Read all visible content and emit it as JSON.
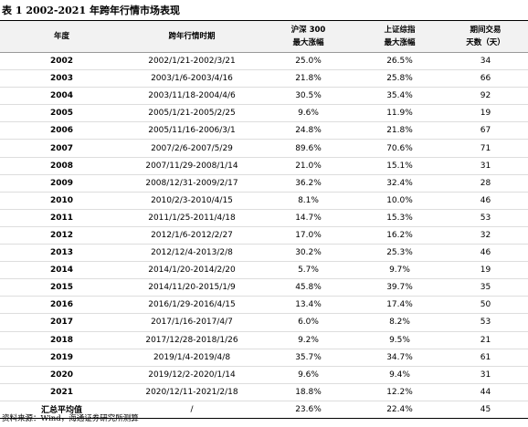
{
  "header": {
    "title": "表 1 2002-2021 年跨年行情市场表现"
  },
  "table": {
    "columns": [
      [
        "年度"
      ],
      [
        "跨年行情时期"
      ],
      [
        "沪深 300",
        "最大涨幅"
      ],
      [
        "上证综指",
        "最大涨幅"
      ],
      [
        "期间交易",
        "天数（天）"
      ]
    ],
    "rows": [
      [
        "2002",
        "2002/1/21-2002/3/21",
        "25.0%",
        "26.5%",
        "34"
      ],
      [
        "2003",
        "2003/1/6-2003/4/16",
        "21.8%",
        "25.8%",
        "66"
      ],
      [
        "2004",
        "2003/11/18-2004/4/6",
        "30.5%",
        "35.4%",
        "92"
      ],
      [
        "2005",
        "2005/1/21-2005/2/25",
        "9.6%",
        "11.9%",
        "19"
      ],
      [
        "2006",
        "2005/11/16-2006/3/1",
        "24.8%",
        "21.8%",
        "67"
      ],
      [
        "2007",
        "2007/2/6-2007/5/29",
        "89.6%",
        "70.6%",
        "71"
      ],
      [
        "2008",
        "2007/11/29-2008/1/14",
        "21.0%",
        "15.1%",
        "31"
      ],
      [
        "2009",
        "2008/12/31-2009/2/17",
        "36.2%",
        "32.4%",
        "28"
      ],
      [
        "2010",
        "2010/2/3-2010/4/15",
        "8.1%",
        "10.0%",
        "46"
      ],
      [
        "2011",
        "2011/1/25-2011/4/18",
        "14.7%",
        "15.3%",
        "53"
      ],
      [
        "2012",
        "2012/1/6-2012/2/27",
        "17.0%",
        "16.2%",
        "32"
      ],
      [
        "2013",
        "2012/12/4-2013/2/8",
        "30.2%",
        "25.3%",
        "46"
      ],
      [
        "2014",
        "2014/1/20-2014/2/20",
        "5.7%",
        "9.7%",
        "19"
      ],
      [
        "2015",
        "2014/11/20-2015/1/9",
        "45.8%",
        "39.7%",
        "35"
      ],
      [
        "2016",
        "2016/1/29-2016/4/15",
        "13.4%",
        "17.4%",
        "50"
      ],
      [
        "2017",
        "2017/1/16-2017/4/7",
        "6.0%",
        "8.2%",
        "53"
      ],
      [
        "2018",
        "2017/12/28-2018/1/26",
        "9.2%",
        "9.5%",
        "21"
      ],
      [
        "2019",
        "2019/1/4-2019/4/8",
        "35.7%",
        "34.7%",
        "61"
      ],
      [
        "2020",
        "2019/12/2-2020/1/14",
        "9.6%",
        "9.4%",
        "31"
      ],
      [
        "2021",
        "2020/12/11-2021/2/18",
        "18.8%",
        "12.2%",
        "44"
      ],
      [
        "汇总平均值",
        "/",
        "23.6%",
        "22.4%",
        "45"
      ]
    ]
  },
  "footer": {
    "source": "资料来源：Wind，海通证券研究所测算"
  }
}
